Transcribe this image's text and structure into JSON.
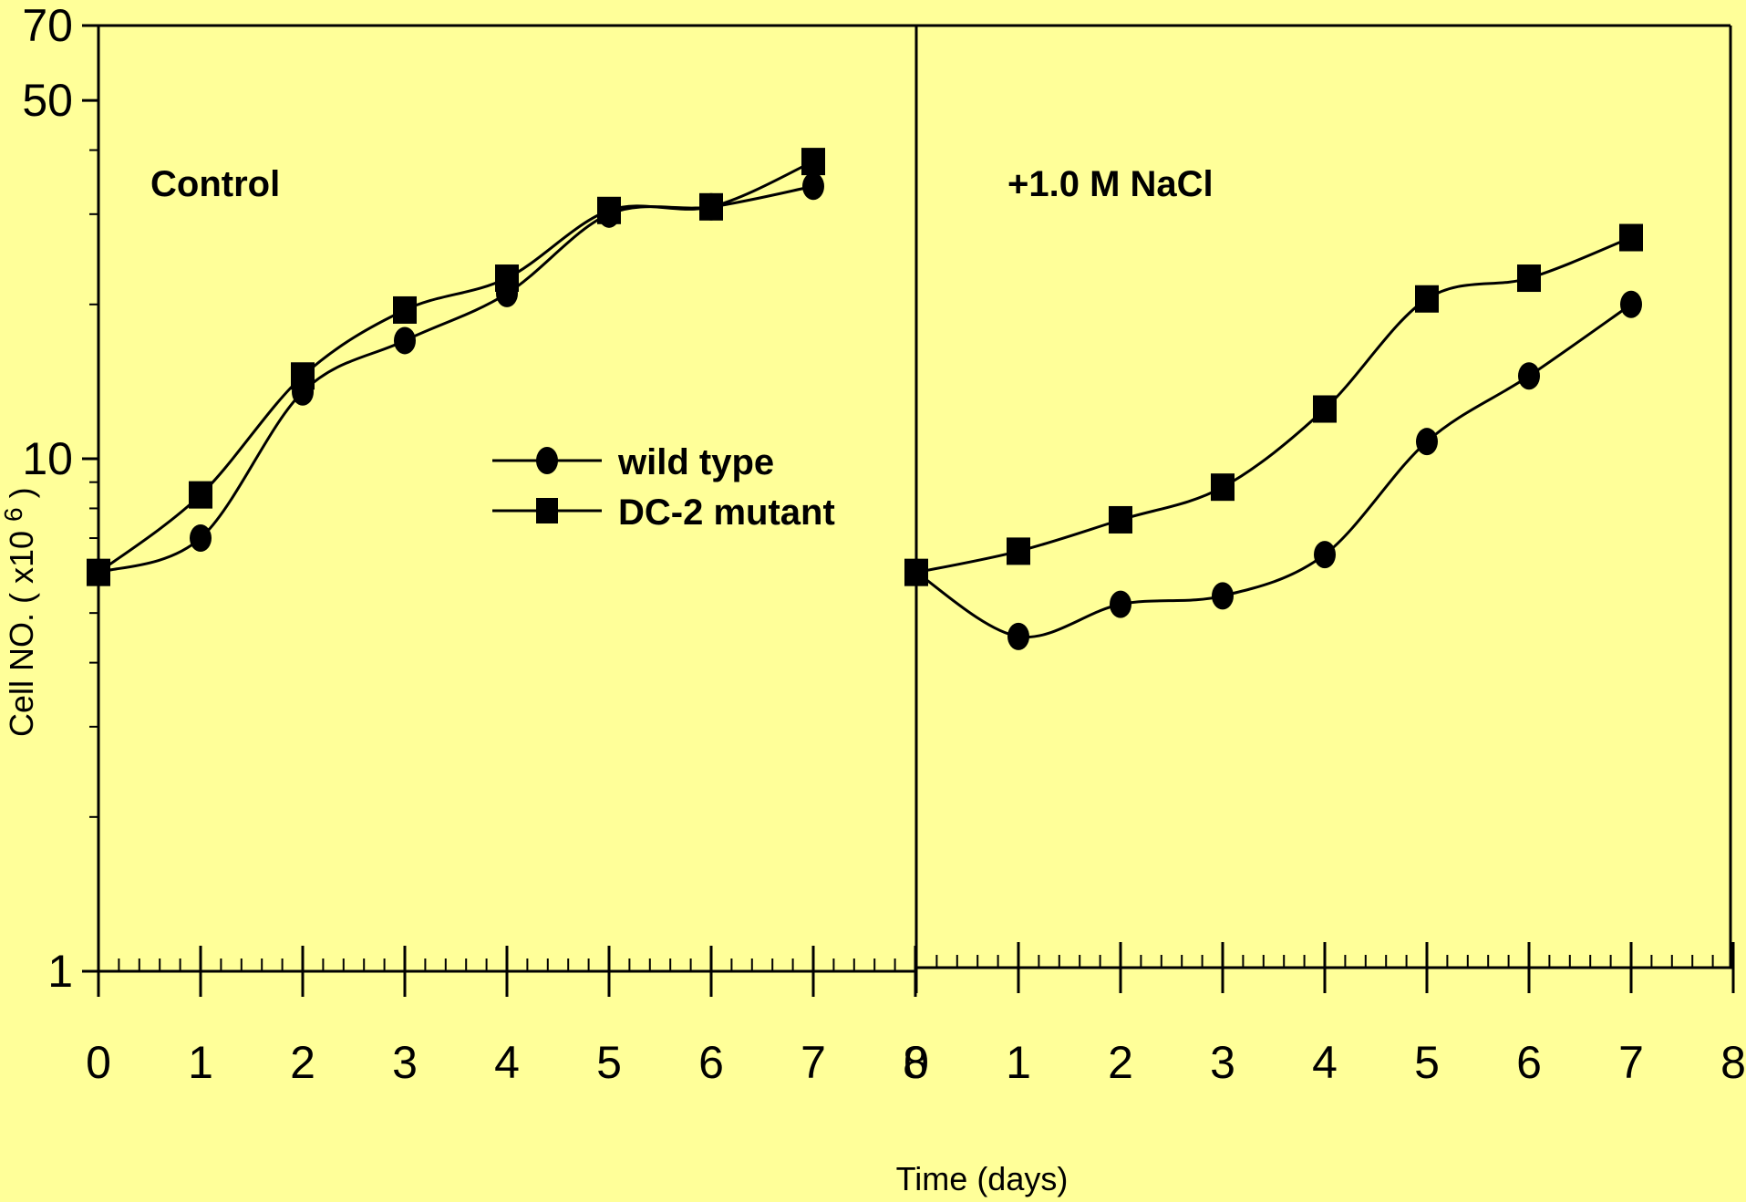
{
  "chart_data": {
    "type": "line",
    "ylabel": "Cell NO. ( x10",
    "ylabel_exponent": "6",
    "ylabel_close": ")",
    "xlabel": "Time (days)",
    "yscale": "log",
    "ylim": [
      1,
      70
    ],
    "ytick_labels": [
      "1",
      "10",
      "50",
      "70"
    ],
    "ytick_values": [
      1,
      10,
      50,
      70
    ],
    "ytick_minor": [
      2,
      3,
      4,
      5,
      6,
      7,
      8,
      9,
      20,
      30,
      40
    ],
    "xlim": [
      0,
      8
    ],
    "xtick_labels": [
      "0",
      "1",
      "2",
      "3",
      "4",
      "5",
      "6",
      "7",
      "8"
    ],
    "grid": false,
    "legend": {
      "placement": "center-left-panel",
      "entries": [
        {
          "label": "wild type",
          "marker": "circle"
        },
        {
          "label": "DC-2 mutant",
          "marker": "square"
        }
      ]
    },
    "panels": [
      {
        "label": "Control",
        "x": [
          0,
          1,
          2,
          3,
          4,
          5,
          6,
          7
        ],
        "series": [
          {
            "name": "wild type",
            "marker": "circle",
            "values": [
              6.0,
              7.0,
              13.5,
              17.0,
              21.0,
              30.0,
              31.0,
              34.0
            ]
          },
          {
            "name": "DC-2 mutant",
            "marker": "square",
            "values": [
              6.0,
              8.5,
              14.5,
              19.5,
              22.5,
              30.5,
              31.0,
              38.0
            ]
          }
        ]
      },
      {
        "label": "+1.0 M NaCl",
        "x": [
          0,
          1,
          2,
          3,
          4,
          5,
          6,
          7
        ],
        "series": [
          {
            "name": "wild type",
            "marker": "circle",
            "values": [
              6.0,
              4.5,
              5.2,
              5.4,
              6.5,
              10.8,
              14.5,
              20.0
            ]
          },
          {
            "name": "DC-2 mutant",
            "marker": "square",
            "values": [
              6.0,
              6.6,
              7.6,
              8.8,
              12.5,
              20.5,
              22.5,
              27.0
            ]
          }
        ]
      }
    ]
  }
}
